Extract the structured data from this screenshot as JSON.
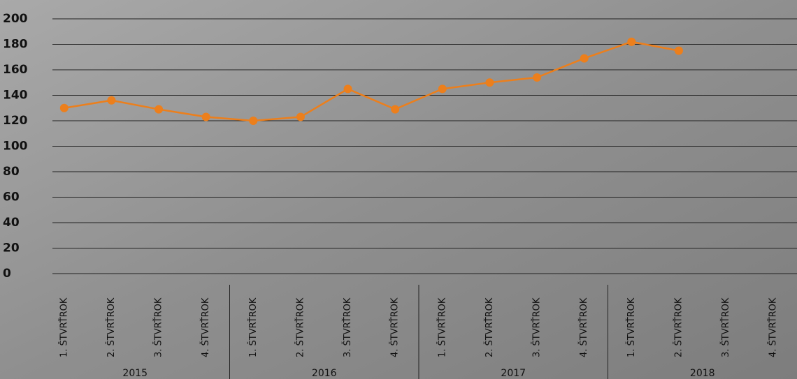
{
  "chart_data": {
    "type": "line",
    "categories": [
      "1. ŠTVRŤROK",
      "2. ŠTVRŤROK",
      "3. ŠTVRŤROK",
      "4. ŠTVRŤROK",
      "1. ŠTVRŤROK",
      "2. ŠTVRŤROK",
      "3. ŠTVRŤROK",
      "4. ŠTVRŤROK",
      "1. ŠTVRŤROK",
      "2. ŠTVRŤROK",
      "3. ŠTVRŤROK",
      "4. ŠTVRŤROK",
      "1. ŠTVRŤROK",
      "2. ŠTVRŤROK",
      "3. ŠTVRŤROK",
      "4. ŠTVRŤROK"
    ],
    "groups": [
      "2015",
      "2016",
      "2017",
      "2018"
    ],
    "values": [
      130,
      136,
      129,
      123,
      120,
      123,
      145,
      129,
      145,
      150,
      154,
      169,
      182,
      175,
      null,
      null
    ],
    "color": "#ec7f1c",
    "ylim": [
      0,
      200
    ],
    "yticks": [
      0,
      20,
      40,
      60,
      80,
      100,
      120,
      140,
      160,
      180,
      200
    ],
    "grid": true
  }
}
